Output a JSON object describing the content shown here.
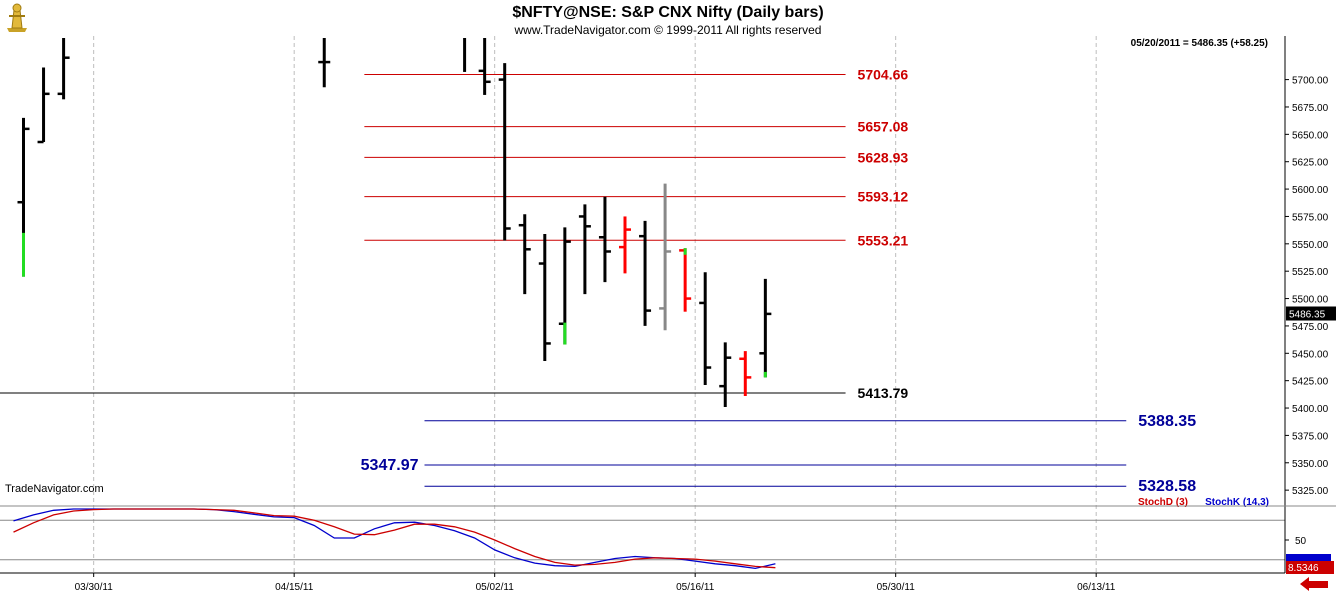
{
  "header": {
    "title": "$NFTY@NSE:  S&P CNX Nifty  (Daily bars)",
    "copyright": "www.TradeNavigator.com © 1999-2011 All rights reserved",
    "last_quote": "05/20/2011 = 5486.35 (+58.25)",
    "watermark": "TradeNavigator.com"
  },
  "colors": {
    "up_bar": "#000000",
    "bar_red": "#ff0000",
    "bar_green": "#22dd22",
    "bar_gray": "#888888",
    "resistance_line": "#cc0000",
    "support_line_black": "#000000",
    "target_line": "#000099",
    "stoch_d": "#cc0000",
    "stoch_k": "#0000cc",
    "price_tag_bg": "#000000"
  },
  "chart_data": {
    "type": "ohlc",
    "price_axis": {
      "ylim": [
        5316,
        5738
      ],
      "ticks": [
        5325,
        5350,
        5375,
        5400,
        5425,
        5450,
        5475,
        5500,
        5525,
        5550,
        5575,
        5600,
        5625,
        5650,
        5675,
        5700
      ],
      "tick_labels": [
        "5325.00",
        "5350.00",
        "5375.00",
        "5400.00",
        "5425.00",
        "5450.00",
        "5475.00",
        "5500.00",
        "5525.00",
        "5550.00",
        "5575.00",
        "5600.00",
        "5625.00",
        "5650.00",
        "5675.00",
        "5700.00"
      ],
      "current_price_label": "5486.35",
      "current_price": 5486.35
    },
    "x_axis": {
      "tick_labels": [
        "03/30/11",
        "04/15/11",
        "05/02/11",
        "05/16/11",
        "05/30/11",
        "06/13/11"
      ],
      "tick_slots": [
        3.5,
        13.5,
        23.5,
        33.5,
        43.5,
        53.5
      ],
      "grid": true
    },
    "bars": [
      {
        "slot": 0,
        "o": 5588,
        "h": 5665,
        "l": 5520,
        "c": 5655,
        "color": "black",
        "seg": [
          5560,
          5520,
          "green"
        ]
      },
      {
        "slot": 1,
        "o": 5643,
        "h": 5711,
        "l": 5643,
        "c": 5687,
        "color": "black"
      },
      {
        "slot": 2,
        "o": 5687,
        "h": 5740,
        "l": 5682,
        "c": 5720,
        "color": "black"
      },
      {
        "slot": 15,
        "o": 5716,
        "h": 5740,
        "l": 5693,
        "c": 5716,
        "color": "black"
      },
      {
        "slot": 22,
        "o": 5740,
        "h": 5740,
        "l": 5707,
        "c": 5740,
        "color": "black"
      },
      {
        "slot": 23,
        "o": 5708,
        "h": 5740,
        "l": 5686,
        "c": 5698,
        "color": "black"
      },
      {
        "slot": 24,
        "o": 5700,
        "h": 5715,
        "l": 5553,
        "c": 5564,
        "color": "black"
      },
      {
        "slot": 25,
        "o": 5567,
        "h": 5577,
        "l": 5504,
        "c": 5545,
        "color": "black"
      },
      {
        "slot": 26,
        "o": 5532,
        "h": 5559,
        "l": 5443,
        "c": 5459,
        "color": "black"
      },
      {
        "slot": 27,
        "o": 5477,
        "h": 5565,
        "l": 5458,
        "c": 5552,
        "color": "black",
        "seg": [
          5478,
          5458,
          "green"
        ]
      },
      {
        "slot": 28,
        "o": 5575,
        "h": 5586,
        "l": 5504,
        "c": 5566,
        "color": "black"
      },
      {
        "slot": 29,
        "o": 5556,
        "h": 5593,
        "l": 5515,
        "c": 5543,
        "color": "black"
      },
      {
        "slot": 30,
        "o": 5547,
        "h": 5575,
        "l": 5523,
        "c": 5563,
        "color": "red"
      },
      {
        "slot": 31,
        "o": 5557,
        "h": 5571,
        "l": 5475,
        "c": 5489,
        "color": "black"
      },
      {
        "slot": 32,
        "o": 5491,
        "h": 5605,
        "l": 5471,
        "c": 5543,
        "color": "gray"
      },
      {
        "slot": 33,
        "o": 5544,
        "h": 5546,
        "l": 5488,
        "c": 5500,
        "color": "red",
        "seg": [
          5546,
          5540,
          "green"
        ]
      },
      {
        "slot": 34,
        "o": 5496,
        "h": 5524,
        "l": 5421,
        "c": 5437,
        "color": "black"
      },
      {
        "slot": 35,
        "o": 5420,
        "h": 5460,
        "l": 5401,
        "c": 5446,
        "color": "black"
      },
      {
        "slot": 36,
        "o": 5445,
        "h": 5452,
        "l": 5411,
        "c": 5428,
        "color": "red"
      },
      {
        "slot": 37,
        "o": 5450,
        "h": 5518,
        "l": 5428,
        "c": 5486,
        "color": "black",
        "seg": [
          5433,
          5428,
          "green"
        ]
      }
    ],
    "horizontal_levels": [
      {
        "value": 5704.66,
        "label": "5704.66",
        "color": "red",
        "from_slot": 17,
        "to_slot": 41,
        "label_side": "right"
      },
      {
        "value": 5657.08,
        "label": "5657.08",
        "color": "red",
        "from_slot": 17,
        "to_slot": 41,
        "label_side": "right"
      },
      {
        "value": 5628.93,
        "label": "5628.93",
        "color": "red",
        "from_slot": 17,
        "to_slot": 41,
        "label_side": "right"
      },
      {
        "value": 5593.12,
        "label": "5593.12",
        "color": "red",
        "from_slot": 17,
        "to_slot": 41,
        "label_side": "right"
      },
      {
        "value": 5553.21,
        "label": "5553.21",
        "color": "red",
        "from_slot": 17,
        "to_slot": 41,
        "label_side": "right"
      },
      {
        "value": 5413.79,
        "label": "5413.79",
        "color": "black",
        "from_slot": -1,
        "to_slot": 41,
        "label_side": "right"
      },
      {
        "value": 5388.35,
        "label": "5388.35",
        "color": "blue",
        "from_slot": 20,
        "to_slot": 55,
        "label_side": "right"
      },
      {
        "value": 5347.97,
        "label": "5347.97",
        "color": "blue",
        "from_slot": 20,
        "to_slot": 55,
        "label_side": "left"
      },
      {
        "value": 5328.58,
        "label": "5328.58",
        "color": "blue",
        "from_slot": 20,
        "to_slot": 55,
        "label_side": "right"
      }
    ],
    "stochastic": {
      "legend_d": "StochD (3)",
      "legend_k": "StochK (14,3)",
      "ylim": [
        0,
        100
      ],
      "tick": 50,
      "tick_label": "50",
      "reference_levels": [
        80,
        20
      ],
      "current_label": "8.5346",
      "k_points": [
        [
          -0.5,
          79
        ],
        [
          0.5,
          88
        ],
        [
          1.5,
          95
        ],
        [
          2.5,
          97
        ],
        [
          3.5,
          97
        ],
        [
          4.5,
          97
        ],
        [
          5.5,
          97
        ],
        [
          6.5,
          97
        ],
        [
          7.5,
          97
        ],
        [
          8.5,
          97
        ],
        [
          9.5,
          96
        ],
        [
          10.5,
          93
        ],
        [
          11.5,
          89
        ],
        [
          12.5,
          85
        ],
        [
          13.5,
          84
        ],
        [
          14.5,
          72
        ],
        [
          15.5,
          53
        ],
        [
          16.5,
          53
        ],
        [
          17.5,
          67
        ],
        [
          18.5,
          76
        ],
        [
          19.5,
          77
        ],
        [
          20.5,
          72
        ],
        [
          21.5,
          64
        ],
        [
          22.5,
          53
        ],
        [
          23.5,
          35
        ],
        [
          24.5,
          23
        ],
        [
          25.5,
          15
        ],
        [
          26.5,
          11
        ],
        [
          27.5,
          10
        ],
        [
          28.5,
          16
        ],
        [
          29.5,
          22
        ],
        [
          30.5,
          25
        ],
        [
          31.5,
          23
        ],
        [
          32.5,
          22
        ],
        [
          33.5,
          18
        ],
        [
          34.5,
          14
        ],
        [
          35.5,
          11
        ],
        [
          36.5,
          7
        ],
        [
          37.5,
          14
        ]
      ],
      "d_points": [
        [
          -0.5,
          62
        ],
        [
          0.5,
          76
        ],
        [
          1.5,
          88
        ],
        [
          2.5,
          94
        ],
        [
          3.5,
          96
        ],
        [
          4.5,
          97
        ],
        [
          5.5,
          97
        ],
        [
          6.5,
          97
        ],
        [
          7.5,
          97
        ],
        [
          8.5,
          97
        ],
        [
          9.5,
          96
        ],
        [
          10.5,
          95
        ],
        [
          11.5,
          91
        ],
        [
          12.5,
          87
        ],
        [
          13.5,
          86
        ],
        [
          14.5,
          80
        ],
        [
          15.5,
          70
        ],
        [
          16.5,
          59
        ],
        [
          17.5,
          58
        ],
        [
          18.5,
          65
        ],
        [
          19.5,
          74
        ],
        [
          20.5,
          74
        ],
        [
          21.5,
          70
        ],
        [
          22.5,
          62
        ],
        [
          23.5,
          50
        ],
        [
          24.5,
          37
        ],
        [
          25.5,
          25
        ],
        [
          26.5,
          16
        ],
        [
          27.5,
          12
        ],
        [
          28.5,
          13
        ],
        [
          29.5,
          16
        ],
        [
          30.5,
          21
        ],
        [
          31.5,
          23
        ],
        [
          32.5,
          22
        ],
        [
          33.5,
          21
        ],
        [
          34.5,
          18
        ],
        [
          35.5,
          14
        ],
        [
          36.5,
          10
        ],
        [
          37.5,
          8
        ]
      ]
    }
  }
}
